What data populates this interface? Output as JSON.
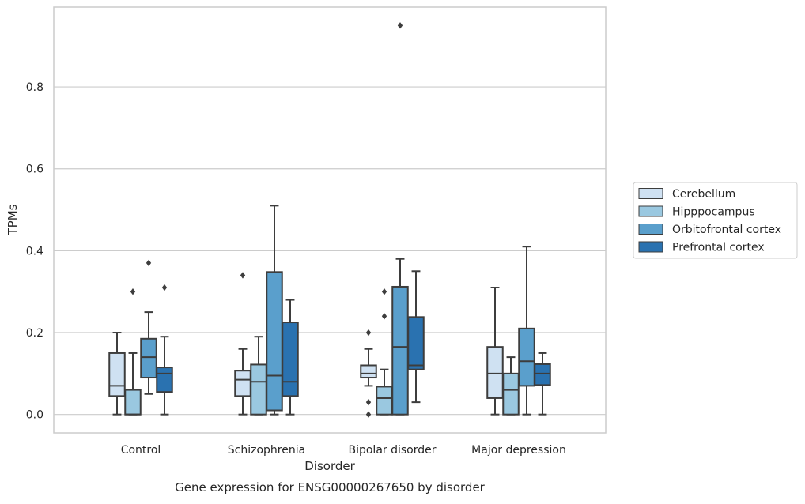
{
  "caption": "Gene expression for ENSG00000267650 by disorder",
  "chart_data": {
    "type": "boxplot",
    "xlabel": "Disorder",
    "ylabel": "TPMs",
    "categories": [
      "Control",
      "Schizophrenia",
      "Bipolar disorder",
      "Major depression"
    ],
    "ylim": [
      -0.045,
      0.995
    ],
    "yticks": [
      {
        "value": 0.0,
        "label": "0.0"
      },
      {
        "value": 0.2,
        "label": "0.2"
      },
      {
        "value": 0.4,
        "label": "0.4"
      },
      {
        "value": 0.6,
        "label": "0.6"
      },
      {
        "value": 0.8,
        "label": "0.8"
      }
    ],
    "grid": "horizontal",
    "legend_position": "right",
    "series": [
      {
        "name": "Cerebellum",
        "color": "#cfe1f2",
        "boxes": [
          {
            "whisker_low": 0.0,
            "q1": 0.045,
            "median": 0.07,
            "q3": 0.15,
            "whisker_high": 0.2,
            "outliers": []
          },
          {
            "whisker_low": 0.0,
            "q1": 0.045,
            "median": 0.085,
            "q3": 0.107,
            "whisker_high": 0.16,
            "outliers": [
              0.34
            ]
          },
          {
            "whisker_low": 0.07,
            "q1": 0.09,
            "median": 0.1,
            "q3": 0.12,
            "whisker_high": 0.16,
            "outliers": [
              0.2,
              0.03,
              0.0
            ]
          },
          {
            "whisker_low": 0.0,
            "q1": 0.04,
            "median": 0.1,
            "q3": 0.165,
            "whisker_high": 0.31,
            "outliers": []
          }
        ]
      },
      {
        "name": "Hipppocampus",
        "color": "#9ac8e0",
        "boxes": [
          {
            "whisker_low": 0.0,
            "q1": 0.0,
            "median": 0.0,
            "q3": 0.06,
            "whisker_high": 0.15,
            "outliers": [
              0.3
            ]
          },
          {
            "whisker_low": 0.0,
            "q1": 0.0,
            "median": 0.08,
            "q3": 0.122,
            "whisker_high": 0.19,
            "outliers": []
          },
          {
            "whisker_low": 0.0,
            "q1": 0.0,
            "median": 0.04,
            "q3": 0.068,
            "whisker_high": 0.11,
            "outliers": [
              0.3,
              0.24
            ]
          },
          {
            "whisker_low": 0.0,
            "q1": 0.0,
            "median": 0.06,
            "q3": 0.1,
            "whisker_high": 0.14,
            "outliers": []
          }
        ]
      },
      {
        "name": "Orbitofrontal cortex",
        "color": "#5a9fcc",
        "boxes": [
          {
            "whisker_low": 0.05,
            "q1": 0.09,
            "median": 0.14,
            "q3": 0.185,
            "whisker_high": 0.25,
            "outliers": [
              0.37
            ]
          },
          {
            "whisker_low": 0.0,
            "q1": 0.01,
            "median": 0.095,
            "q3": 0.348,
            "whisker_high": 0.51,
            "outliers": []
          },
          {
            "whisker_low": 0.0,
            "q1": 0.0,
            "median": 0.165,
            "q3": 0.312,
            "whisker_high": 0.38,
            "outliers": [
              0.95
            ]
          },
          {
            "whisker_low": 0.0,
            "q1": 0.07,
            "median": 0.13,
            "q3": 0.21,
            "whisker_high": 0.41,
            "outliers": []
          }
        ]
      },
      {
        "name": "Prefrontal cortex",
        "color": "#2a72b0",
        "boxes": [
          {
            "whisker_low": 0.0,
            "q1": 0.055,
            "median": 0.1,
            "q3": 0.115,
            "whisker_high": 0.19,
            "outliers": [
              0.31
            ]
          },
          {
            "whisker_low": 0.0,
            "q1": 0.045,
            "median": 0.08,
            "q3": 0.225,
            "whisker_high": 0.28,
            "outliers": []
          },
          {
            "whisker_low": 0.03,
            "q1": 0.11,
            "median": 0.12,
            "q3": 0.238,
            "whisker_high": 0.35,
            "outliers": []
          },
          {
            "whisker_low": 0.0,
            "q1": 0.072,
            "median": 0.1,
            "q3": 0.123,
            "whisker_high": 0.15,
            "outliers": []
          }
        ]
      }
    ]
  }
}
